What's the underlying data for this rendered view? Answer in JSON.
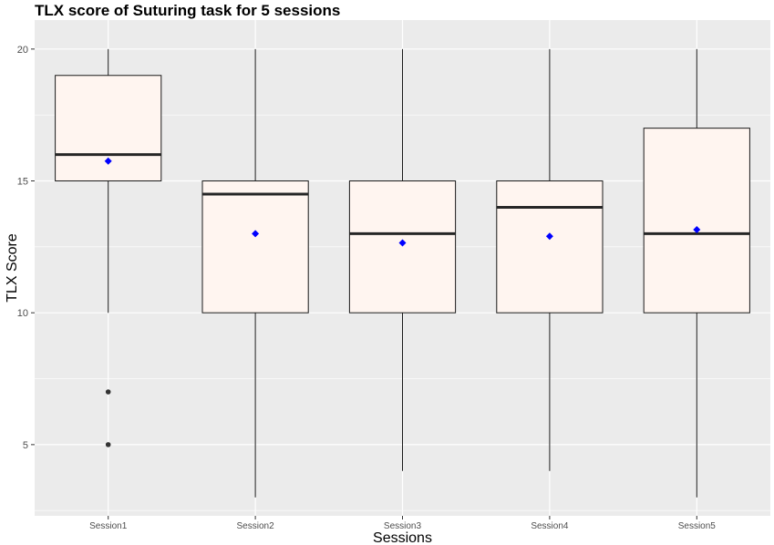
{
  "chart_data": {
    "type": "box",
    "title": "TLX score of Suturing task for 5 sessions",
    "xlabel": "Sessions",
    "ylabel": "TLX Score",
    "ylim": [
      2.3,
      21.1
    ],
    "yticks": [
      5,
      10,
      15,
      20
    ],
    "grid": true,
    "legend": "none",
    "categories": [
      "Session1",
      "Session2",
      "Session3",
      "Session4",
      "Session5"
    ],
    "boxes": [
      {
        "whisker_low": 10,
        "q1": 15,
        "median": 16,
        "q3": 19,
        "whisker_high": 20,
        "mean": 15.75,
        "outliers": [
          7,
          5
        ]
      },
      {
        "whisker_low": 3,
        "q1": 10,
        "median": 14.5,
        "q3": 15,
        "whisker_high": 20,
        "mean": 13.0,
        "outliers": []
      },
      {
        "whisker_low": 4,
        "q1": 10,
        "median": 13,
        "q3": 15,
        "whisker_high": 20,
        "mean": 12.65,
        "outliers": []
      },
      {
        "whisker_low": 4,
        "q1": 10,
        "median": 14,
        "q3": 15,
        "whisker_high": 20,
        "mean": 12.9,
        "outliers": []
      },
      {
        "whisker_low": 3,
        "q1": 10,
        "median": 13,
        "q3": 17,
        "whisker_high": 20,
        "mean": 13.15,
        "outliers": []
      }
    ],
    "colors": {
      "panel": "#ebebeb",
      "grid": "#ffffff",
      "box_fill": "#fff5f0",
      "box_stroke": "#1a1a1a",
      "median": "#262626",
      "mean": "#0000ff",
      "outlier": "#333333"
    }
  }
}
